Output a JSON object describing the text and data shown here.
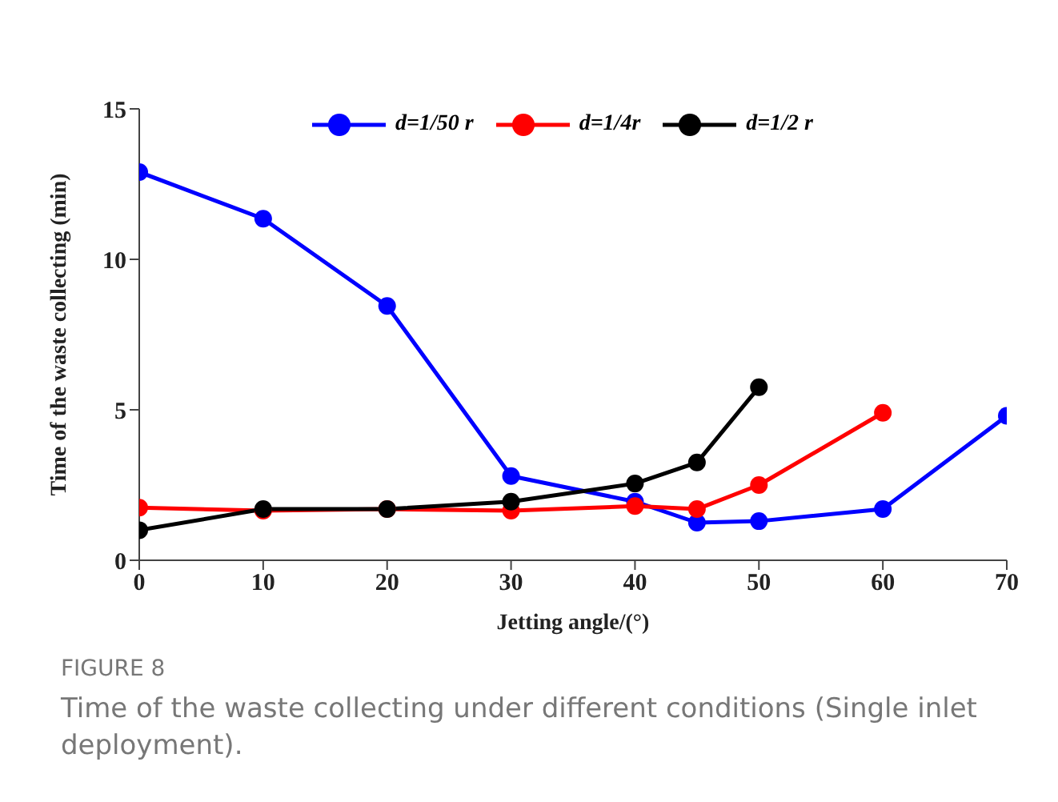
{
  "chart_data": {
    "type": "line",
    "xlabel": "Jetting angle/(°)",
    "ylabel": "Time of the waste collecting (min)",
    "xlim": [
      0,
      70
    ],
    "xticks": [
      0,
      10,
      20,
      30,
      40,
      50,
      60,
      70
    ],
    "ylim": [
      0,
      15
    ],
    "yticks": [
      0,
      5,
      10,
      15
    ],
    "series": [
      {
        "name": "d=1/50 r",
        "color": "#0000ff",
        "x": [
          0,
          10,
          20,
          30,
          40,
          45,
          50,
          60,
          70
        ],
        "values": [
          12.9,
          11.35,
          8.45,
          2.8,
          1.95,
          1.25,
          1.3,
          1.7,
          4.8
        ]
      },
      {
        "name": "d=1/4r",
        "color": "#ff0000",
        "x": [
          0,
          10,
          20,
          30,
          40,
          45,
          50,
          60
        ],
        "values": [
          1.75,
          1.65,
          1.7,
          1.65,
          1.8,
          1.7,
          2.5,
          4.9
        ]
      },
      {
        "name": "d=1/2 r",
        "color": "#000000",
        "x": [
          0,
          10,
          20,
          30,
          40,
          45,
          50
        ],
        "values": [
          1.0,
          1.7,
          1.7,
          1.95,
          2.55,
          3.25,
          5.75
        ]
      }
    ],
    "marker": "circle",
    "line_style": "solid",
    "grid": false,
    "legend": "top",
    "annotations": [
      "FIGURE 8",
      "Time of the waste collecting under different conditions (Single inlet deployment)."
    ]
  }
}
